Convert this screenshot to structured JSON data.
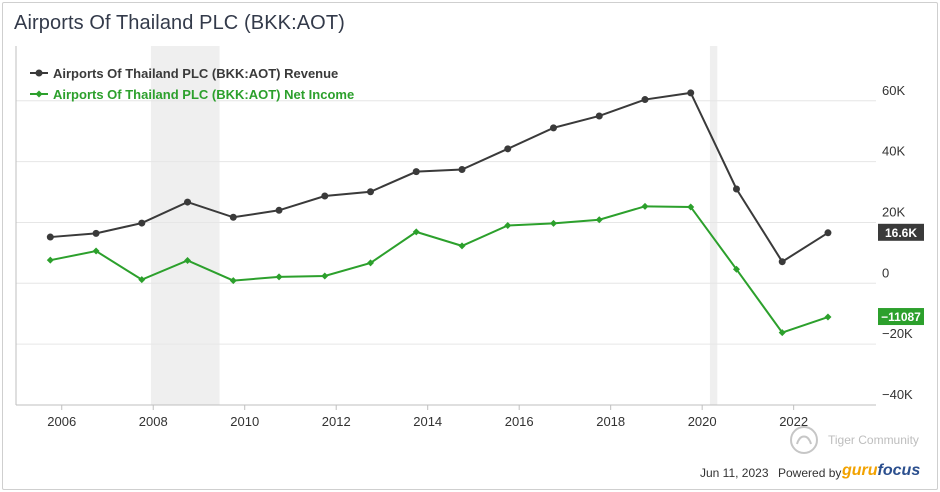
{
  "title": "Airports Of Thailand PLC  (BKK:AOT)",
  "chart_data": {
    "type": "line",
    "title": "Airports Of Thailand PLC  (BKK:AOT)",
    "xlabel": "",
    "ylabel": "",
    "x_ticks": [
      "2006",
      "2008",
      "2010",
      "2012",
      "2014",
      "2016",
      "2018",
      "2020",
      "2022"
    ],
    "y_ticks": [
      "60K",
      "40K",
      "20K",
      "0",
      "−20K",
      "−40K"
    ],
    "y_tick_values": [
      60000,
      40000,
      20000,
      0,
      -20000,
      -40000
    ],
    "xlim": [
      2005.0,
      2023.8
    ],
    "ylim": [
      -40000,
      78000
    ],
    "recession_bands": [
      [
        2007.95,
        2009.45
      ],
      [
        2020.17,
        2020.33
      ]
    ],
    "series": [
      {
        "name": "Airports Of Thailand PLC (BKK:AOT) Revenue",
        "color": "#3a3a3a",
        "marker": "circle",
        "x": [
          2005.75,
          2006.75,
          2007.75,
          2008.75,
          2009.75,
          2010.75,
          2011.75,
          2012.75,
          2013.75,
          2014.75,
          2015.75,
          2016.75,
          2017.75,
          2018.75,
          2019.75,
          2020.75,
          2021.75,
          2022.75
        ],
        "values": [
          15200,
          16400,
          19800,
          26700,
          21700,
          24000,
          28700,
          30100,
          36700,
          37400,
          44200,
          51100,
          55000,
          60400,
          62600,
          31000,
          7100,
          16600
        ]
      },
      {
        "name": "Airports Of Thailand PLC (BKK:AOT) Net Income",
        "color": "#2ca02c",
        "marker": "diamond",
        "x": [
          2005.75,
          2006.75,
          2007.75,
          2008.75,
          2009.75,
          2010.75,
          2011.75,
          2012.75,
          2013.75,
          2014.75,
          2015.75,
          2016.75,
          2017.75,
          2018.75,
          2019.75,
          2020.75,
          2021.75,
          2022.75
        ],
        "values": [
          7600,
          10600,
          1200,
          7500,
          900,
          2100,
          2400,
          6700,
          16900,
          12300,
          19000,
          19700,
          20900,
          25300,
          25100,
          4600,
          -16200,
          -11087
        ]
      }
    ],
    "last_value_labels": [
      {
        "series": "Airports Of Thailand PLC (BKK:AOT) Revenue",
        "text": "16.6K",
        "color": "#3a3a3a"
      },
      {
        "series": "Airports Of Thailand PLC (BKK:AOT) Net Income",
        "text": "−11087",
        "color": "#2ca02c"
      }
    ],
    "legend_position": "top-left",
    "grid": true
  },
  "footer": {
    "date": "Jun 11, 2023",
    "powered_by": "Powered by",
    "brand_part1": "guru",
    "brand_part2": "focus",
    "watermark": "Tiger Community"
  }
}
